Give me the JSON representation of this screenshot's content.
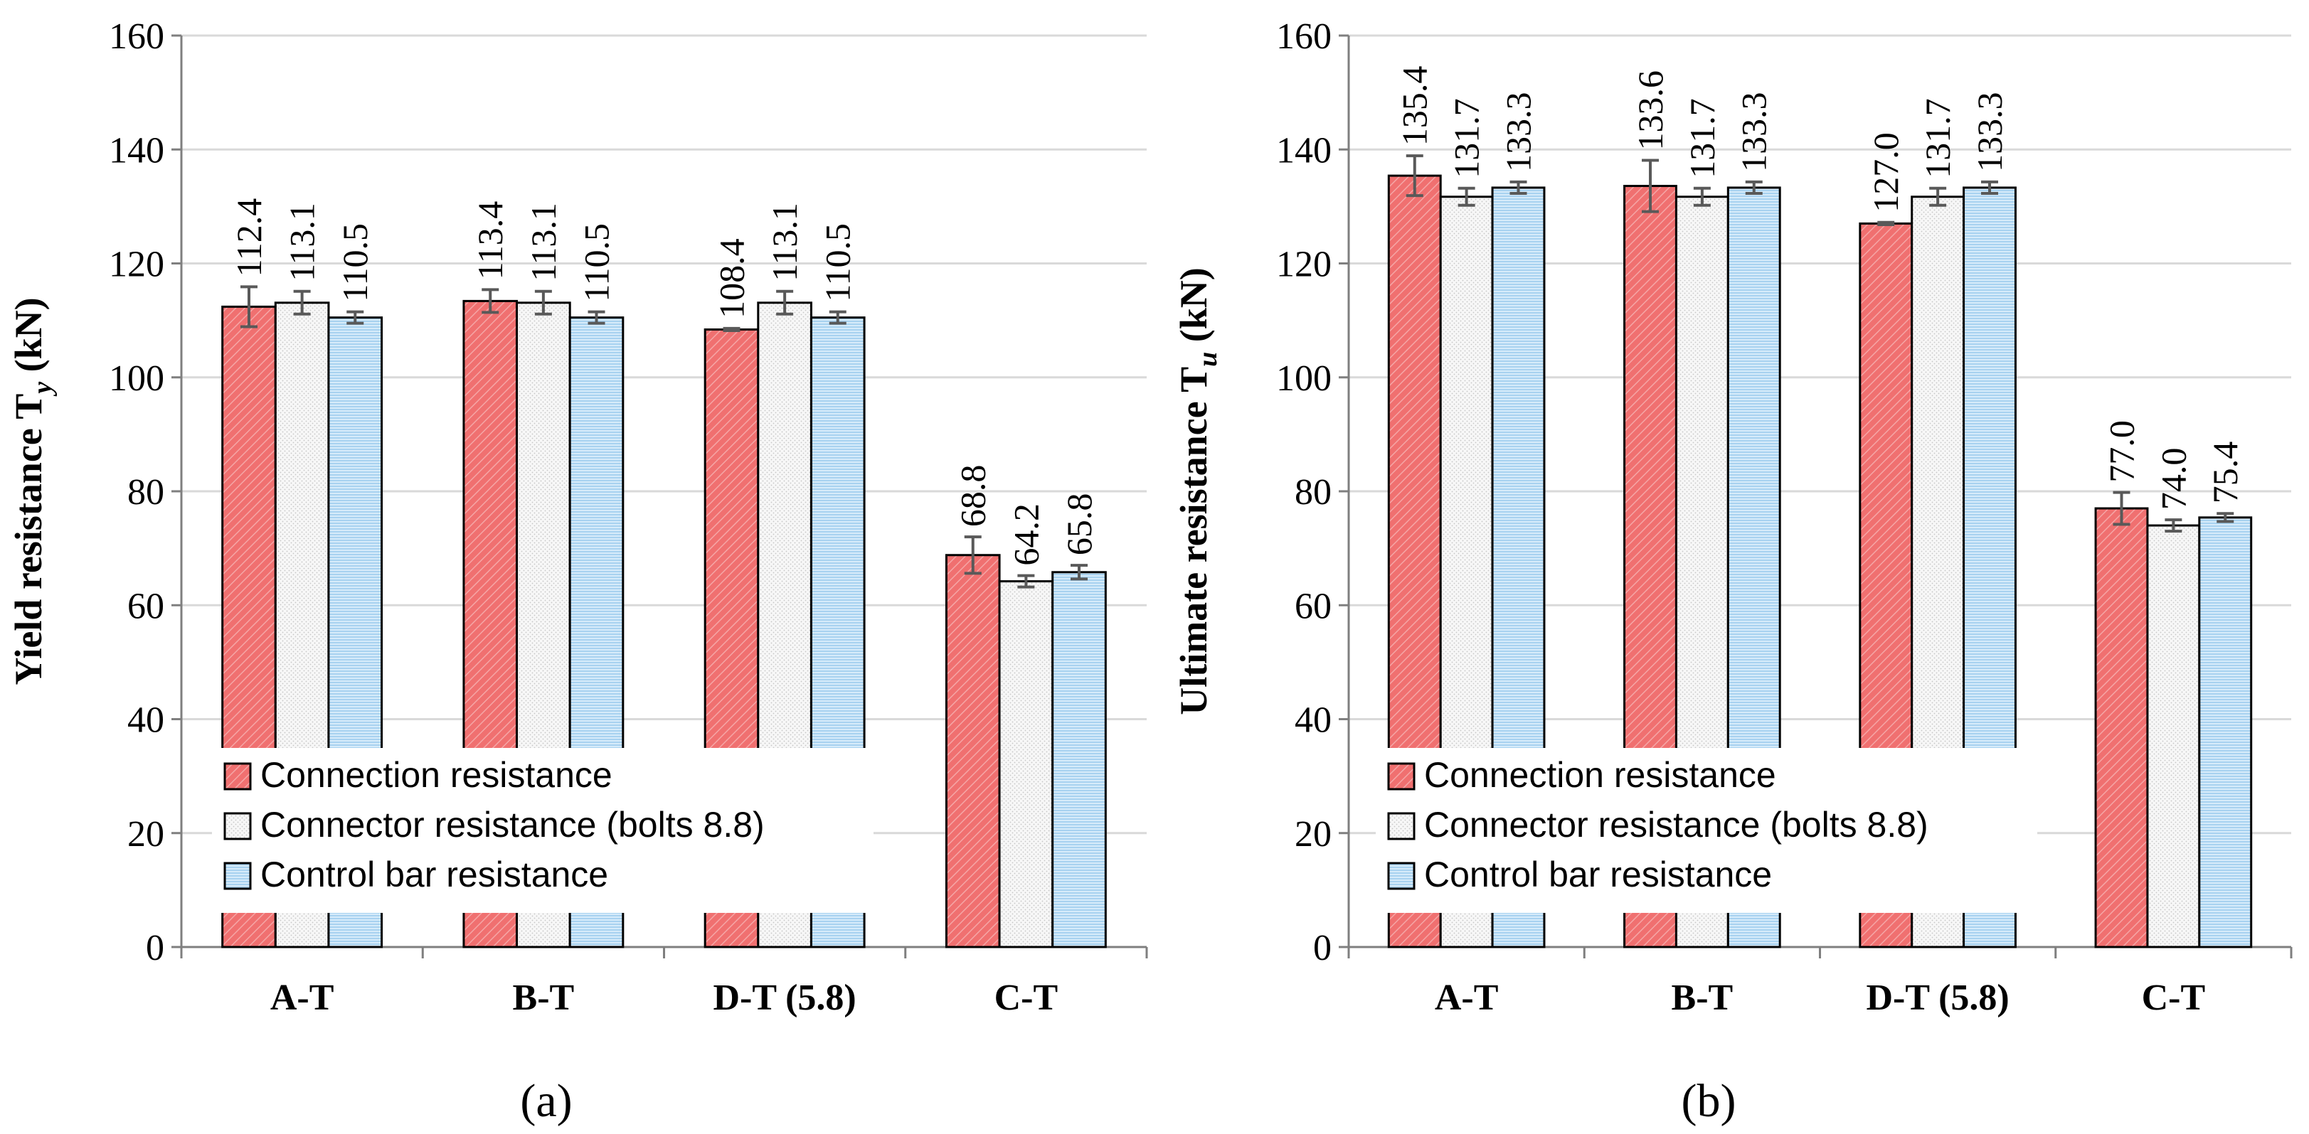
{
  "colors": {
    "connection": "#f07070",
    "connector": "#f6f6f6",
    "control": "#a8d2f0",
    "grid": "#d9d9d9",
    "axis": "#7f7f7f",
    "errorbar": "#595959"
  },
  "legend": {
    "connection": "Connection resistance",
    "connector": "Connector resistance (bolts 8.8)",
    "control": "Control bar resistance"
  },
  "chart_data": [
    {
      "type": "bar",
      "panel_label": "(a)",
      "ylabel": "Yield resistance T",
      "ylabel_sub": "y",
      "ylabel_unit": " (kN)",
      "ylim": [
        0,
        160
      ],
      "yticks": [
        0,
        20,
        40,
        60,
        80,
        100,
        120,
        140,
        160
      ],
      "grid": true,
      "legend_position": "bottom-left",
      "categories": [
        "A-T",
        "B-T",
        "D-T (5.8)",
        "C-T"
      ],
      "series": [
        {
          "name": "Connection resistance",
          "key": "connection",
          "values": [
            112.4,
            113.4,
            108.4,
            68.8
          ],
          "labels": [
            "112.4",
            "113.4",
            "108.4",
            "68.8"
          ],
          "errors": [
            3.5,
            2.0,
            0.2,
            3.2
          ]
        },
        {
          "name": "Connector resistance (bolts 8.8)",
          "key": "connector",
          "values": [
            113.1,
            113.1,
            113.1,
            64.2
          ],
          "labels": [
            "113.1",
            "113.1",
            "113.1",
            "64.2"
          ],
          "errors": [
            2.0,
            2.0,
            2.0,
            1.0
          ]
        },
        {
          "name": "Control bar resistance",
          "key": "control",
          "values": [
            110.5,
            110.5,
            110.5,
            65.8
          ],
          "labels": [
            "110.5",
            "110.5",
            "110.5",
            "65.8"
          ],
          "errors": [
            1.0,
            1.0,
            1.0,
            1.2
          ]
        }
      ]
    },
    {
      "type": "bar",
      "panel_label": "(b)",
      "ylabel": "Ultimate resistance T",
      "ylabel_sub": "u",
      "ylabel_unit": " (kN)",
      "ylim": [
        0,
        160
      ],
      "yticks": [
        0,
        20,
        40,
        60,
        80,
        100,
        120,
        140,
        160
      ],
      "grid": true,
      "legend_position": "bottom-left",
      "categories": [
        "A-T",
        "B-T",
        "D-T (5.8)",
        "C-T"
      ],
      "series": [
        {
          "name": "Connection resistance",
          "key": "connection",
          "values": [
            135.4,
            133.6,
            127.0,
            77.0
          ],
          "labels": [
            "135.4",
            "133.6",
            "127.0",
            "77.0"
          ],
          "errors": [
            3.5,
            4.5,
            0.2,
            2.8
          ]
        },
        {
          "name": "Connector resistance (bolts 8.8)",
          "key": "connector",
          "values": [
            131.7,
            131.7,
            131.7,
            74.0
          ],
          "labels": [
            "131.7",
            "131.7",
            "131.7",
            "74.0"
          ],
          "errors": [
            1.5,
            1.5,
            1.5,
            1.0
          ]
        },
        {
          "name": "Control bar resistance",
          "key": "control",
          "values": [
            133.3,
            133.3,
            133.3,
            75.4
          ],
          "labels": [
            "133.3",
            "133.3",
            "133.3",
            "75.4"
          ],
          "errors": [
            1.0,
            1.0,
            1.0,
            0.7
          ]
        }
      ]
    }
  ]
}
